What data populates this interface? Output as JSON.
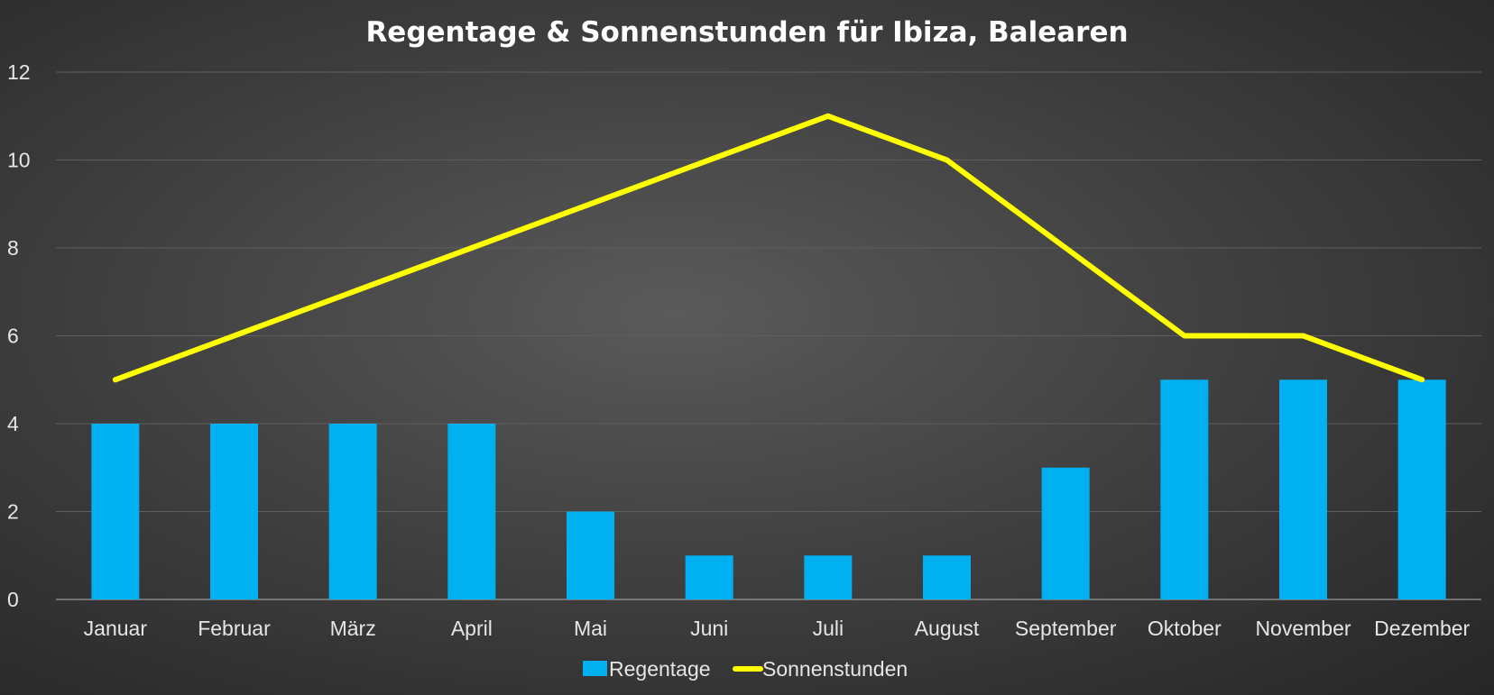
{
  "chart_data": {
    "type": "bar",
    "title": "Regentage & Sonnenstunden für Ibiza, Balearen",
    "xlabel": "",
    "ylabel": "",
    "categories": [
      "Januar",
      "Februar",
      "März",
      "April",
      "Mai",
      "Juni",
      "Juli",
      "August",
      "September",
      "Oktober",
      "November",
      "Dezember"
    ],
    "series": [
      {
        "name": "Regentage",
        "type": "bar",
        "color": "#00b0f0",
        "values": [
          4,
          4,
          4,
          4,
          2,
          1,
          1,
          1,
          3,
          5,
          5,
          5
        ]
      },
      {
        "name": "Sonnenstunden",
        "type": "line",
        "color": "#ffff00",
        "values": [
          5,
          6,
          7,
          8,
          9,
          10,
          11,
          10,
          8,
          6,
          6,
          5
        ]
      }
    ],
    "ylim": [
      0,
      12
    ],
    "yticks": [
      0,
      2,
      4,
      6,
      8,
      10,
      12
    ],
    "grid": true,
    "legend": "bottom-center"
  }
}
